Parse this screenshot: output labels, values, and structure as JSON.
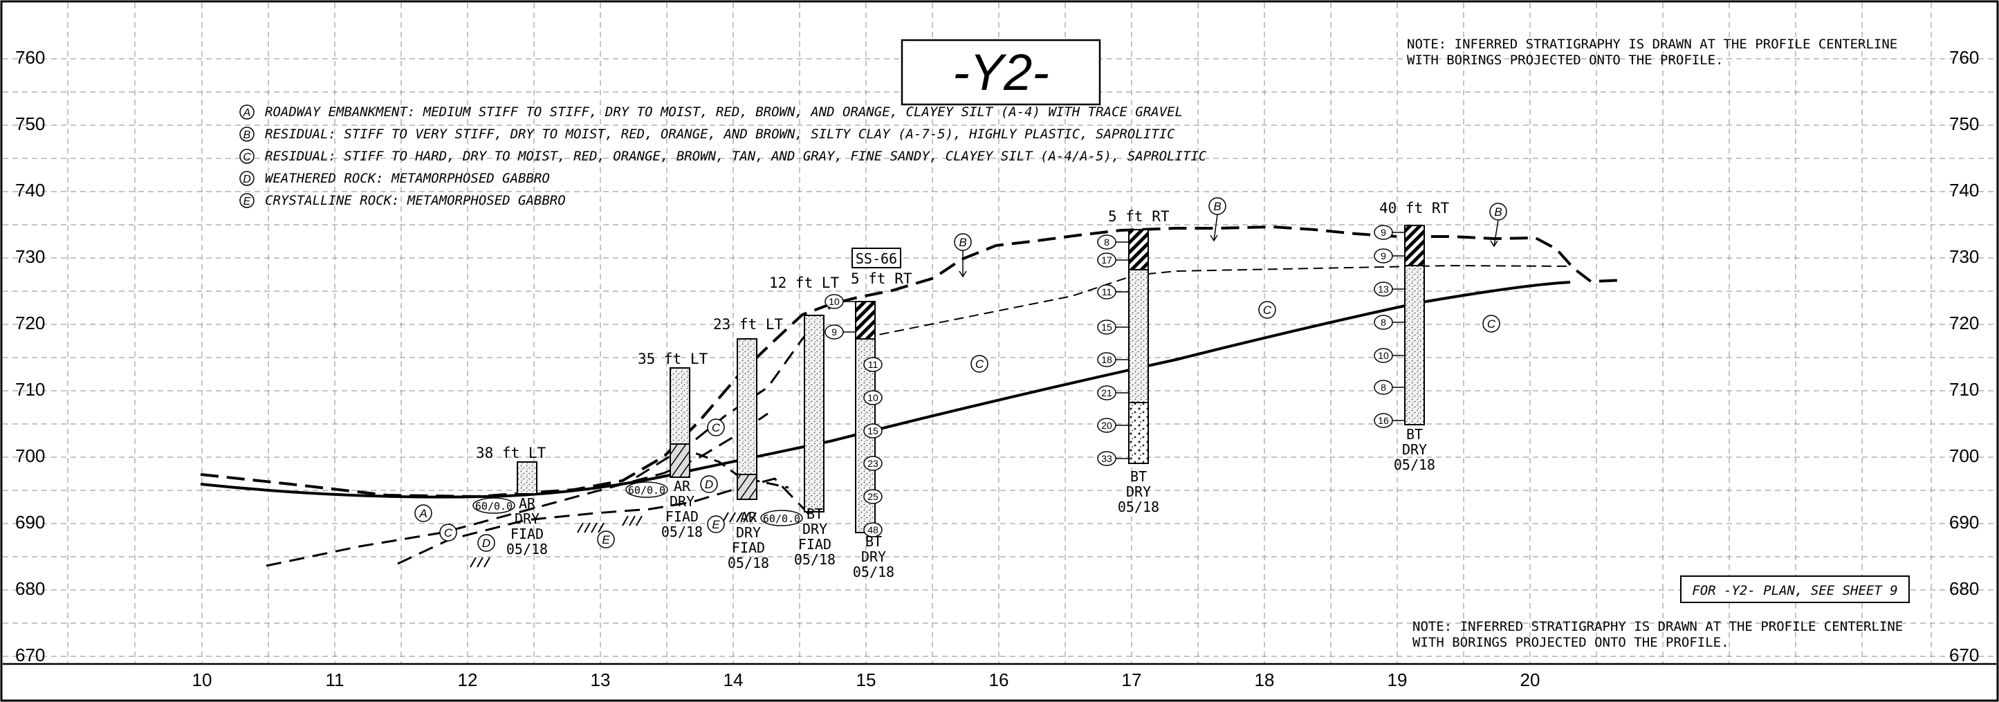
{
  "title": "-Y2-",
  "note_top": [
    "NOTE: INFERRED STRATIGRAPHY IS DRAWN AT THE PROFILE CENTERLINE",
    "WITH BORINGS PROJECTED ONTO THE PROFILE."
  ],
  "note_bottom": [
    "NOTE: INFERRED STRATIGRAPHY IS DRAWN AT THE PROFILE CENTERLINE",
    "WITH BORINGS PROJECTED ONTO THE PROFILE."
  ],
  "plan_reference": "FOR -Y2- PLAN, SEE SHEET 9",
  "legend": [
    {
      "key": "A",
      "text": "ROADWAY EMBANKMENT: MEDIUM STIFF TO STIFF, DRY TO MOIST, RED, BROWN, AND ORANGE, CLAYEY SILT (A-4) WITH TRACE GRAVEL"
    },
    {
      "key": "B",
      "text": "RESIDUAL: STIFF TO VERY STIFF, DRY TO MOIST, RED, ORANGE, AND BROWN, SILTY CLAY (A-7-5), HIGHLY PLASTIC, SAPROLITIC"
    },
    {
      "key": "C",
      "text": "RESIDUAL: STIFF TO HARD, DRY TO MOIST, RED, ORANGE, BROWN, TAN, AND GRAY, FINE SANDY, CLAYEY SILT (A-4/A-5), SAPROLITIC"
    },
    {
      "key": "D",
      "text": "WEATHERED ROCK: METAMORPHOSED GABBRO"
    },
    {
      "key": "E",
      "text": "CRYSTALLINE ROCK: METAMORPHOSED GABBRO"
    }
  ],
  "x_ticks": [
    "10",
    "11",
    "12",
    "13",
    "14",
    "15",
    "16",
    "17",
    "18",
    "19",
    "20"
  ],
  "y_ticks": [
    "760",
    "750",
    "740",
    "730",
    "720",
    "710",
    "700",
    "690",
    "680",
    "670"
  ],
  "boring_tag": "SS-66",
  "borings": [
    {
      "offset": "38 ft LT",
      "status": [
        "AR",
        "DRY",
        "FIAD",
        "05/18"
      ],
      "refusal": "60/0.0"
    },
    {
      "offset": "35 ft LT",
      "status": [
        "AR",
        "DRY",
        "FIAD",
        "05/18"
      ],
      "refusal": "60/0.0"
    },
    {
      "offset": "23 ft LT",
      "status": [
        "AR",
        "DRY",
        "FIAD",
        "05/18"
      ],
      "refusal": "60/0.0"
    },
    {
      "offset": "12 ft LT",
      "status": [
        "BT",
        "DRY",
        "FIAD",
        "05/18"
      ],
      "spt": [
        "10",
        "9",
        "11",
        "10",
        "15",
        "23",
        "25",
        "48"
      ]
    },
    {
      "offset": "5 ft RT",
      "status": [
        "BT",
        "DRY",
        "05/18"
      ]
    },
    {
      "offset": "5 ft RT",
      "status": [
        "BT",
        "DRY",
        "05/18"
      ],
      "spt": [
        "8",
        "17",
        "11",
        "15",
        "18",
        "21",
        "20",
        "33"
      ]
    },
    {
      "offset": "40 ft RT",
      "status": [
        "BT",
        "DRY",
        "05/18"
      ],
      "spt": [
        "9",
        "9",
        "13",
        "8",
        "10",
        "8",
        "16"
      ]
    }
  ],
  "section_labels": {
    "A": "A",
    "B": "B",
    "C": "C",
    "D": "D",
    "E": "E"
  }
}
